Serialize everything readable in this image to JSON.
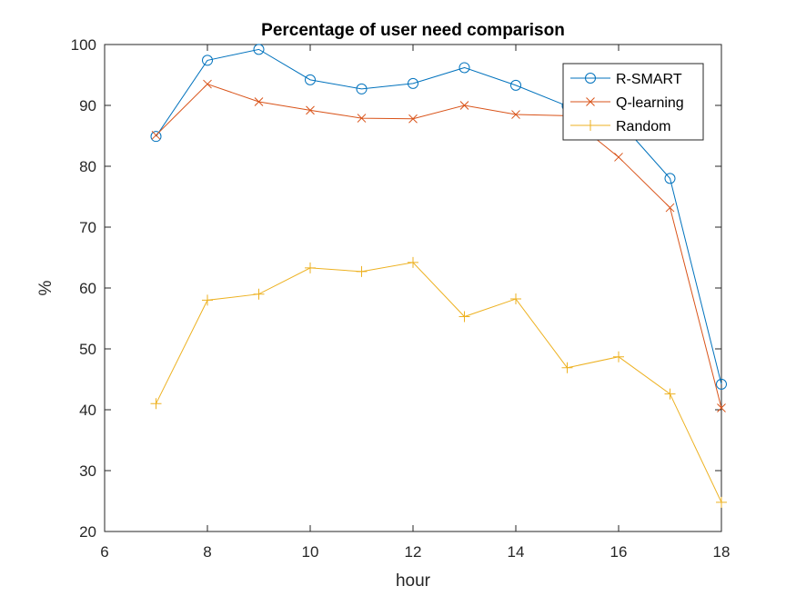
{
  "chart_data": {
    "type": "line",
    "title": "Percentage of user need comparison",
    "xlabel": "hour",
    "ylabel": "%",
    "xlim": [
      6,
      18
    ],
    "ylim": [
      20,
      100
    ],
    "xticks": [
      6,
      8,
      10,
      12,
      14,
      16,
      18
    ],
    "yticks": [
      20,
      30,
      40,
      50,
      60,
      70,
      80,
      90,
      100
    ],
    "grid": false,
    "legend_position": "top-right",
    "x": [
      7,
      8,
      9,
      10,
      11,
      12,
      13,
      14,
      15,
      16,
      17,
      18
    ],
    "series": [
      {
        "name": "R-SMART",
        "marker": "circle",
        "color": "#0072BD",
        "values": [
          84.9,
          97.4,
          99.2,
          94.2,
          92.7,
          93.6,
          96.2,
          93.3,
          89.9,
          87.5,
          78.0,
          44.2
        ]
      },
      {
        "name": "Q-learning",
        "marker": "x",
        "color": "#D95319",
        "values": [
          85.1,
          93.5,
          90.6,
          89.2,
          87.9,
          87.8,
          90.0,
          88.5,
          88.3,
          81.5,
          73.2,
          40.3
        ]
      },
      {
        "name": "Random",
        "marker": "plus",
        "color": "#EDB120",
        "values": [
          41.0,
          58.0,
          59.0,
          63.3,
          62.7,
          64.2,
          55.3,
          58.2,
          46.9,
          48.7,
          42.6,
          24.8
        ]
      }
    ]
  }
}
